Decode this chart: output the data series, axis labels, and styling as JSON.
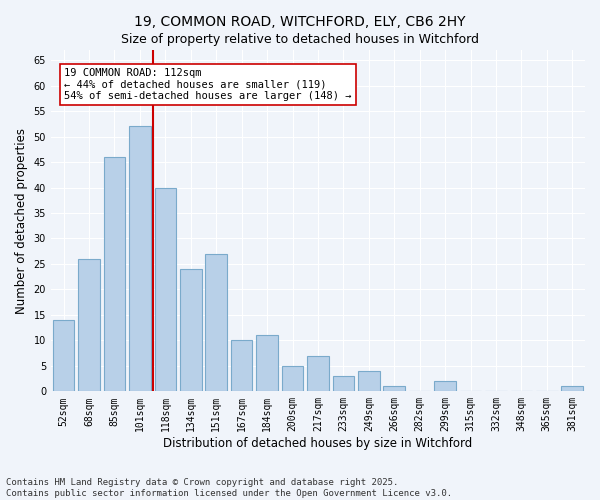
{
  "title_line1": "19, COMMON ROAD, WITCHFORD, ELY, CB6 2HY",
  "title_line2": "Size of property relative to detached houses in Witchford",
  "xlabel": "Distribution of detached houses by size in Witchford",
  "ylabel": "Number of detached properties",
  "categories": [
    "52sqm",
    "68sqm",
    "85sqm",
    "101sqm",
    "118sqm",
    "134sqm",
    "151sqm",
    "167sqm",
    "184sqm",
    "200sqm",
    "217sqm",
    "233sqm",
    "249sqm",
    "266sqm",
    "282sqm",
    "299sqm",
    "315sqm",
    "332sqm",
    "348sqm",
    "365sqm",
    "381sqm"
  ],
  "values": [
    14,
    26,
    46,
    52,
    40,
    24,
    27,
    10,
    11,
    5,
    7,
    3,
    4,
    1,
    0,
    2,
    0,
    0,
    0,
    0,
    1
  ],
  "bar_color": "#b8d0e8",
  "bar_edgecolor": "#7aaacb",
  "bar_linewidth": 0.8,
  "vline_x": 3.5,
  "vline_color": "#cc0000",
  "vline_linewidth": 1.5,
  "annotation_text": "19 COMMON ROAD: 112sqm\n← 44% of detached houses are smaller (119)\n54% of semi-detached houses are larger (148) →",
  "annotation_fontsize": 7.5,
  "annotation_box_color": "#cc0000",
  "ylim": [
    0,
    67
  ],
  "yticks": [
    0,
    5,
    10,
    15,
    20,
    25,
    30,
    35,
    40,
    45,
    50,
    55,
    60,
    65
  ],
  "background_color": "#f0f4fa",
  "grid_color": "#ffffff",
  "footer_line1": "Contains HM Land Registry data © Crown copyright and database right 2025.",
  "footer_line2": "Contains public sector information licensed under the Open Government Licence v3.0.",
  "title_fontsize": 10,
  "subtitle_fontsize": 9,
  "xlabel_fontsize": 8.5,
  "ylabel_fontsize": 8.5,
  "tick_fontsize": 7,
  "footer_fontsize": 6.5
}
